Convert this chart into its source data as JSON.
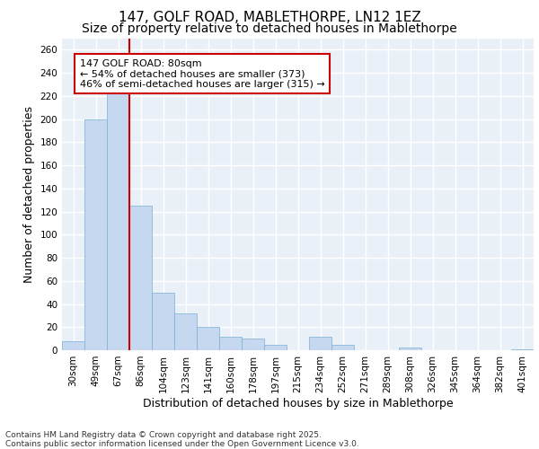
{
  "title1": "147, GOLF ROAD, MABLETHORPE, LN12 1EZ",
  "title2": "Size of property relative to detached houses in Mablethorpe",
  "xlabel": "Distribution of detached houses by size in Mablethorpe",
  "ylabel": "Number of detached properties",
  "categories": [
    "30sqm",
    "49sqm",
    "67sqm",
    "86sqm",
    "104sqm",
    "123sqm",
    "141sqm",
    "160sqm",
    "178sqm",
    "197sqm",
    "215sqm",
    "234sqm",
    "252sqm",
    "271sqm",
    "289sqm",
    "308sqm",
    "326sqm",
    "345sqm",
    "364sqm",
    "382sqm",
    "401sqm"
  ],
  "values": [
    8,
    200,
    230,
    125,
    50,
    32,
    20,
    12,
    10,
    5,
    0,
    12,
    5,
    0,
    0,
    2,
    0,
    0,
    0,
    0,
    1
  ],
  "bar_color": "#c5d8f0",
  "bar_edge_color": "#7bafd4",
  "vline_x_index": 3,
  "vline_color": "#cc0000",
  "annotation_text": "147 GOLF ROAD: 80sqm\n← 54% of detached houses are smaller (373)\n46% of semi-detached houses are larger (315) →",
  "annotation_box_color": "#ffffff",
  "annotation_box_edge": "#cc0000",
  "ylim": [
    0,
    270
  ],
  "yticks": [
    0,
    20,
    40,
    60,
    80,
    100,
    120,
    140,
    160,
    180,
    200,
    220,
    240,
    260
  ],
  "bg_color": "#eaf0f8",
  "grid_color": "#ffffff",
  "footer": "Contains HM Land Registry data © Crown copyright and database right 2025.\nContains public sector information licensed under the Open Government Licence v3.0.",
  "title_fontsize": 11,
  "subtitle_fontsize": 10,
  "axis_label_fontsize": 9,
  "tick_fontsize": 7.5,
  "footer_fontsize": 6.5,
  "annot_fontsize": 8
}
